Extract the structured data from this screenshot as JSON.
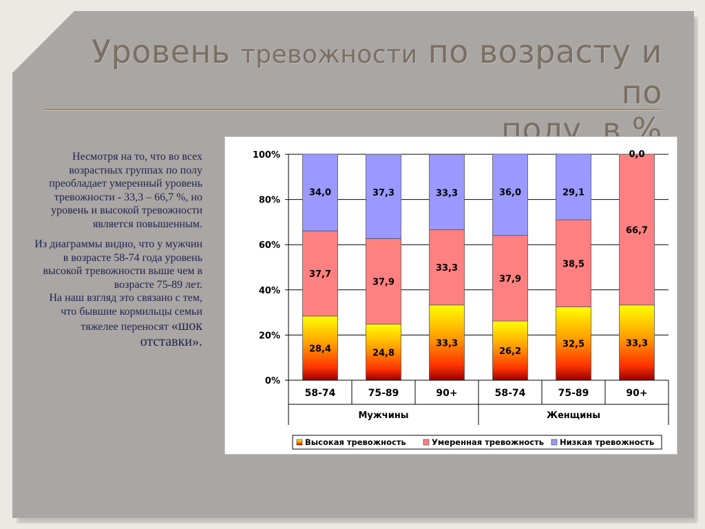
{
  "title": {
    "line1_a": "Уровень ",
    "line1_b": "тревожности",
    "line1_c": " по возрасту и по",
    "line2": "полу, в %"
  },
  "body": {
    "p1": "Несмотря на то, что во всех возрастных группах по полу преобладает умеренный уровень тревожности - 33,3 – 66,7 %, но уровень и высокой тревожности является повышенным.",
    "p2": "Из диаграммы видно, что у мужчин в возрасте 58-74 года уровень высокой тревожности выше чем в возрасте 75-89 лет.",
    "p3_a": "На наш взгляд это связано с тем, что бывшие кормильцы семьи тяжелее переносят ",
    "p3_b": "«шок отставки»."
  },
  "chart_data": {
    "type": "bar",
    "stacked": "100%",
    "categories": [
      "58-74",
      "75-89",
      "90+",
      "58-74",
      "75-89",
      "90+"
    ],
    "groups": [
      {
        "label": "Мужчины",
        "categories": [
          0,
          1,
          2
        ]
      },
      {
        "label": "Женщины",
        "categories": [
          3,
          4,
          5
        ]
      }
    ],
    "series": [
      {
        "name": "Высокая тревожность",
        "color": "#ff9900",
        "values": [
          28.4,
          24.8,
          33.3,
          26.2,
          32.5,
          33.3
        ],
        "labels": [
          "28,4",
          "24,8",
          "33,3",
          "26,2",
          "32,5",
          "33,3"
        ]
      },
      {
        "name": "Умеренная тревожность",
        "color": "#ff8080",
        "values": [
          37.7,
          37.9,
          33.3,
          37.9,
          38.5,
          66.7
        ],
        "labels": [
          "37,7",
          "37,9",
          "33,3",
          "37,9",
          "38,5",
          "66,7"
        ]
      },
      {
        "name": "Низкая тревожность",
        "color": "#9999ff",
        "values": [
          34.0,
          37.3,
          33.3,
          36.0,
          29.1,
          0.0
        ],
        "labels": [
          "34,0",
          "37,3",
          "33,3",
          "36,0",
          "29,1",
          "0,0"
        ]
      }
    ],
    "y_ticks": [
      "0%",
      "20%",
      "40%",
      "60%",
      "80%",
      "100%"
    ],
    "ylim": [
      0,
      100
    ],
    "grid": true,
    "legend": "bottom"
  }
}
